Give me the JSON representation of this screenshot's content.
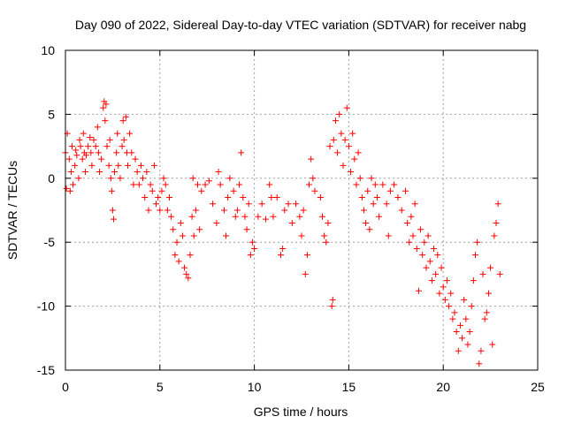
{
  "chart_data": {
    "type": "scatter",
    "title": "Day 090 of 2022, Sidereal Day-to-day VTEC variation (SDTVAR) for receiver nabg",
    "xlabel": "GPS time / hours",
    "ylabel": "SDTVAR / TECUs",
    "xlim": [
      0,
      25
    ],
    "ylim": [
      -15,
      10
    ],
    "x_ticks": [
      "0",
      "5",
      "10",
      "15",
      "20",
      "25"
    ],
    "y_ticks": [
      "10",
      "5",
      "0",
      "-5",
      "-10",
      "-15"
    ],
    "grid": true,
    "marker": "plus",
    "color": "#ff0000",
    "series": [
      {
        "name": "SDTVAR",
        "points": [
          [
            0.0,
            2.0
          ],
          [
            0.05,
            -0.8
          ],
          [
            0.1,
            3.5
          ],
          [
            0.2,
            1.5
          ],
          [
            0.25,
            -1.0
          ],
          [
            0.3,
            0.5
          ],
          [
            0.35,
            2.5
          ],
          [
            0.4,
            -0.5
          ],
          [
            0.5,
            1.0
          ],
          [
            0.55,
            2.2
          ],
          [
            0.6,
            1.8
          ],
          [
            0.7,
            0.0
          ],
          [
            0.75,
            3.0
          ],
          [
            0.8,
            2.5
          ],
          [
            0.9,
            1.5
          ],
          [
            0.95,
            3.5
          ],
          [
            1.0,
            2.0
          ],
          [
            1.05,
            0.5
          ],
          [
            1.1,
            1.8
          ],
          [
            1.2,
            2.5
          ],
          [
            1.3,
            3.2
          ],
          [
            1.35,
            2.0
          ],
          [
            1.4,
            1.0
          ],
          [
            1.5,
            3.0
          ],
          [
            1.6,
            2.5
          ],
          [
            1.7,
            4.0
          ],
          [
            1.75,
            2.0
          ],
          [
            1.8,
            0.5
          ],
          [
            1.9,
            1.5
          ],
          [
            2.0,
            5.5
          ],
          [
            2.05,
            6.0
          ],
          [
            2.1,
            4.5
          ],
          [
            2.15,
            5.8
          ],
          [
            2.2,
            2.5
          ],
          [
            2.3,
            1.0
          ],
          [
            2.35,
            3.0
          ],
          [
            2.4,
            0.0
          ],
          [
            2.45,
            -1.0
          ],
          [
            2.5,
            -2.5
          ],
          [
            2.55,
            -3.2
          ],
          [
            2.6,
            0.5
          ],
          [
            2.7,
            2.0
          ],
          [
            2.75,
            3.5
          ],
          [
            2.8,
            1.0
          ],
          [
            2.9,
            0.0
          ],
          [
            3.0,
            2.5
          ],
          [
            3.05,
            4.5
          ],
          [
            3.1,
            3.0
          ],
          [
            3.2,
            4.8
          ],
          [
            3.25,
            2.0
          ],
          [
            3.3,
            1.0
          ],
          [
            3.4,
            3.5
          ],
          [
            3.5,
            2.0
          ],
          [
            3.6,
            -0.5
          ],
          [
            3.7,
            1.5
          ],
          [
            3.8,
            0.5
          ],
          [
            3.9,
            -0.5
          ],
          [
            4.0,
            1.0
          ],
          [
            4.1,
            0.0
          ],
          [
            4.2,
            -1.5
          ],
          [
            4.3,
            0.5
          ],
          [
            4.4,
            -2.5
          ],
          [
            4.5,
            -0.5
          ],
          [
            4.6,
            -1.0
          ],
          [
            4.7,
            1.0
          ],
          [
            4.8,
            -2.0
          ],
          [
            4.9,
            -1.5
          ],
          [
            5.0,
            -2.5
          ],
          [
            5.1,
            -1.0
          ],
          [
            5.2,
            0.0
          ],
          [
            5.3,
            -0.5
          ],
          [
            5.4,
            -2.5
          ],
          [
            5.5,
            -1.5
          ],
          [
            5.6,
            -3.0
          ],
          [
            5.7,
            -4.0
          ],
          [
            5.8,
            -6.0
          ],
          [
            5.9,
            -5.0
          ],
          [
            6.0,
            -6.5
          ],
          [
            6.1,
            -3.5
          ],
          [
            6.2,
            -4.5
          ],
          [
            6.3,
            -7.0
          ],
          [
            6.4,
            -7.5
          ],
          [
            6.5,
            -7.8
          ],
          [
            6.6,
            -6.0
          ],
          [
            6.7,
            -3.0
          ],
          [
            6.75,
            0.0
          ],
          [
            6.8,
            -4.5
          ],
          [
            6.9,
            -2.5
          ],
          [
            7.0,
            -0.5
          ],
          [
            7.1,
            -4.0
          ],
          [
            7.2,
            -1.0
          ],
          [
            7.4,
            -0.5
          ],
          [
            7.6,
            -0.2
          ],
          [
            7.8,
            -2.0
          ],
          [
            8.0,
            -3.5
          ],
          [
            8.1,
            0.5
          ],
          [
            8.2,
            -0.5
          ],
          [
            8.4,
            -2.5
          ],
          [
            8.5,
            -4.5
          ],
          [
            8.6,
            -1.5
          ],
          [
            8.7,
            0.0
          ],
          [
            8.9,
            -1.0
          ],
          [
            9.0,
            -3.0
          ],
          [
            9.1,
            -2.5
          ],
          [
            9.2,
            -0.5
          ],
          [
            9.3,
            2.0
          ],
          [
            9.4,
            -1.5
          ],
          [
            9.5,
            -3.0
          ],
          [
            9.6,
            -4.0
          ],
          [
            9.7,
            -2.0
          ],
          [
            9.8,
            -6.0
          ],
          [
            9.9,
            -5.0
          ],
          [
            10.0,
            -5.5
          ],
          [
            10.2,
            -3.0
          ],
          [
            10.4,
            -2.0
          ],
          [
            10.6,
            -3.2
          ],
          [
            10.8,
            -0.5
          ],
          [
            10.9,
            -1.5
          ],
          [
            11.0,
            -3.0
          ],
          [
            11.2,
            -1.5
          ],
          [
            11.4,
            -6.0
          ],
          [
            11.5,
            -5.5
          ],
          [
            11.6,
            -2.5
          ],
          [
            11.8,
            -2.0
          ],
          [
            12.0,
            -3.5
          ],
          [
            12.2,
            -2.0
          ],
          [
            12.4,
            -3.0
          ],
          [
            12.5,
            -4.5
          ],
          [
            12.6,
            -2.5
          ],
          [
            12.7,
            -7.5
          ],
          [
            12.8,
            -6.0
          ],
          [
            12.9,
            -0.5
          ],
          [
            13.0,
            1.5
          ],
          [
            13.1,
            0.0
          ],
          [
            13.2,
            -1.0
          ],
          [
            13.5,
            -1.5
          ],
          [
            13.6,
            -3.0
          ],
          [
            13.7,
            -4.5
          ],
          [
            13.8,
            -5.0
          ],
          [
            13.9,
            -3.5
          ],
          [
            14.0,
            2.5
          ],
          [
            14.1,
            -10.0
          ],
          [
            14.15,
            -9.5
          ],
          [
            14.2,
            3.0
          ],
          [
            14.3,
            4.5
          ],
          [
            14.4,
            2.0
          ],
          [
            14.5,
            5.0
          ],
          [
            14.6,
            3.5
          ],
          [
            14.7,
            1.0
          ],
          [
            14.8,
            3.0
          ],
          [
            14.9,
            5.5
          ],
          [
            15.0,
            2.5
          ],
          [
            15.1,
            0.5
          ],
          [
            15.2,
            3.5
          ],
          [
            15.3,
            1.5
          ],
          [
            15.4,
            -0.5
          ],
          [
            15.5,
            2.0
          ],
          [
            15.6,
            0.0
          ],
          [
            15.7,
            -1.5
          ],
          [
            15.8,
            -2.5
          ],
          [
            15.9,
            -3.5
          ],
          [
            16.0,
            -1.0
          ],
          [
            16.1,
            -4.0
          ],
          [
            16.2,
            0.0
          ],
          [
            16.3,
            -2.0
          ],
          [
            16.4,
            -0.5
          ],
          [
            16.5,
            -1.5
          ],
          [
            16.6,
            -3.0
          ],
          [
            16.8,
            -0.5
          ],
          [
            17.0,
            -2.0
          ],
          [
            17.1,
            -4.5
          ],
          [
            17.2,
            -1.0
          ],
          [
            17.4,
            -0.5
          ],
          [
            17.6,
            -1.5
          ],
          [
            17.8,
            -2.5
          ],
          [
            18.0,
            -1.0
          ],
          [
            18.1,
            -3.5
          ],
          [
            18.2,
            -5.0
          ],
          [
            18.3,
            -3.0
          ],
          [
            18.4,
            -4.5
          ],
          [
            18.5,
            -2.0
          ],
          [
            18.6,
            -5.5
          ],
          [
            18.7,
            -8.8
          ],
          [
            18.8,
            -4.0
          ],
          [
            18.9,
            -6.0
          ],
          [
            19.0,
            -5.0
          ],
          [
            19.1,
            -7.0
          ],
          [
            19.2,
            -4.5
          ],
          [
            19.3,
            -6.5
          ],
          [
            19.4,
            -8.0
          ],
          [
            19.5,
            -5.5
          ],
          [
            19.6,
            -7.5
          ],
          [
            19.7,
            -6.0
          ],
          [
            19.8,
            -9.0
          ],
          [
            19.9,
            -7.0
          ],
          [
            20.0,
            -8.5
          ],
          [
            20.1,
            -9.5
          ],
          [
            20.2,
            -8.0
          ],
          [
            20.3,
            -10.0
          ],
          [
            20.4,
            -9.0
          ],
          [
            20.5,
            -11.0
          ],
          [
            20.6,
            -10.5
          ],
          [
            20.7,
            -12.0
          ],
          [
            20.8,
            -13.5
          ],
          [
            20.9,
            -11.5
          ],
          [
            21.0,
            -12.5
          ],
          [
            21.1,
            -9.5
          ],
          [
            21.2,
            -11.0
          ],
          [
            21.3,
            -13.0
          ],
          [
            21.4,
            -12.0
          ],
          [
            21.5,
            -10.0
          ],
          [
            21.6,
            -8.0
          ],
          [
            21.7,
            -6.0
          ],
          [
            21.8,
            -5.0
          ],
          [
            21.9,
            -14.5
          ],
          [
            22.0,
            -13.5
          ],
          [
            22.1,
            -7.5
          ],
          [
            22.2,
            -11.0
          ],
          [
            22.3,
            -10.5
          ],
          [
            22.4,
            -9.0
          ],
          [
            22.5,
            -7.0
          ],
          [
            22.6,
            -13.0
          ],
          [
            22.7,
            -4.5
          ],
          [
            22.8,
            -3.5
          ],
          [
            22.9,
            -2.0
          ],
          [
            23.0,
            -7.5
          ]
        ]
      }
    ]
  }
}
